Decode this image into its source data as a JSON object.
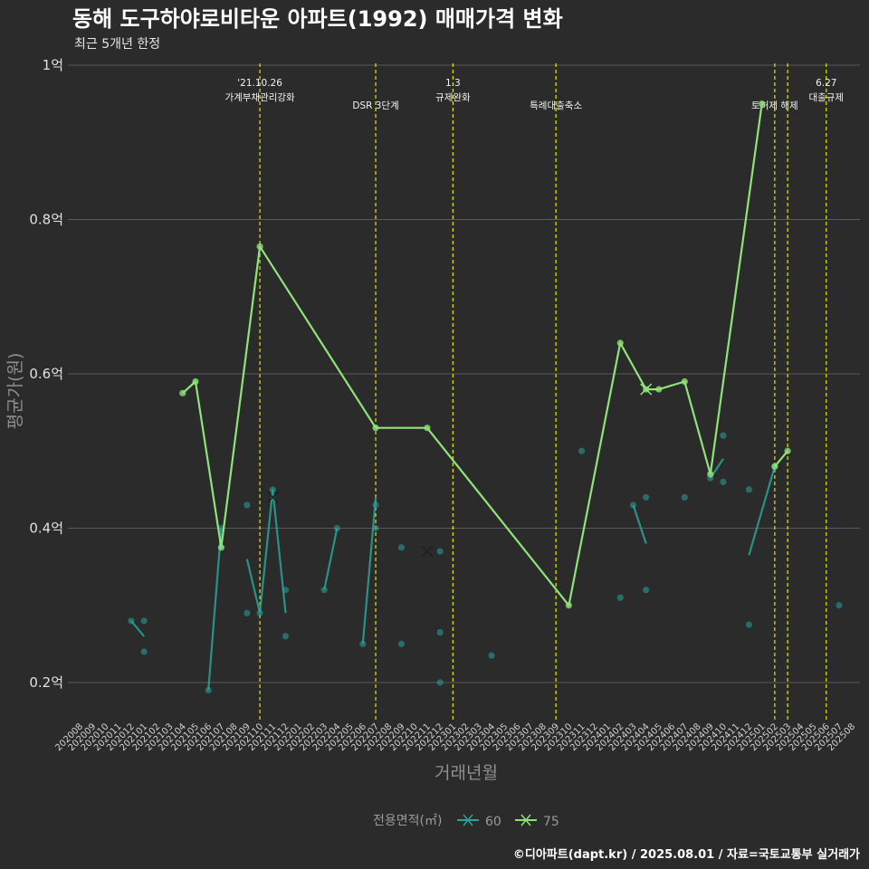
{
  "title": "동해 도구하야로비타운 아파트(1992) 매매가격 변화",
  "subtitle": "최근 5개년 한정",
  "caption": "©디아파트(dapt.kr) / 2025.08.01 / 자료=국토교통부 실거래가",
  "legend": {
    "title": "전용면적(㎡)"
  },
  "colors": {
    "background": "#2b2b2b",
    "grid": "#5a5a5a",
    "event_line": "#e6e600"
  },
  "chart_data": {
    "type": "line",
    "xlabel": "거래년월",
    "ylabel": "평균가(원)",
    "ylim": [
      0.155,
      1.0
    ],
    "yticks": [
      {
        "value": 0.2,
        "label": "0.2억"
      },
      {
        "value": 0.4,
        "label": "0.4억"
      },
      {
        "value": 0.6,
        "label": "0.6억"
      },
      {
        "value": 0.8,
        "label": "0.8억"
      },
      {
        "value": 1.0,
        "label": "1억"
      }
    ],
    "x_categories": [
      "202008",
      "202009",
      "202010",
      "202011",
      "202012",
      "202101",
      "202102",
      "202103",
      "202104",
      "202105",
      "202106",
      "202107",
      "202108",
      "202109",
      "202110",
      "202111",
      "202112",
      "202201",
      "202202",
      "202203",
      "202204",
      "202205",
      "202206",
      "202207",
      "202208",
      "202209",
      "202210",
      "202211",
      "202212",
      "202301",
      "202302",
      "202303",
      "202304",
      "202305",
      "202306",
      "202307",
      "202308",
      "202309",
      "202310",
      "202311",
      "202312",
      "202401",
      "202402",
      "202403",
      "202404",
      "202405",
      "202406",
      "202407",
      "202408",
      "202409",
      "202410",
      "202411",
      "202412",
      "202501",
      "202502",
      "202503",
      "202504",
      "202505",
      "202506",
      "202507",
      "202508"
    ],
    "grid": true,
    "legend_position": "bottom",
    "events": [
      {
        "x": "202110",
        "label": [
          "'21.10.26",
          "가계부채관리강화"
        ]
      },
      {
        "x": "202207",
        "label": [
          "DSR 3단계"
        ]
      },
      {
        "x": "202301",
        "label": [
          "1.3",
          "규제완화"
        ]
      },
      {
        "x": "202309",
        "label": [
          "특례대출축소"
        ]
      },
      {
        "x": "202502",
        "label": [
          "토허제 해제"
        ]
      },
      {
        "x": "202503",
        "label": [
          ""
        ]
      },
      {
        "x": "202506",
        "label": [
          "6.27",
          "대출규제"
        ]
      }
    ],
    "series": [
      {
        "name": "60",
        "color": "#2aa39a",
        "line_segments": [
          [
            [
              "202012",
              0.28
            ],
            [
              "202101",
              0.26
            ]
          ],
          [
            [
              "202106",
              0.19
            ],
            [
              "202107",
              0.4
            ]
          ],
          [
            [
              "202109",
              0.36
            ],
            [
              "202110",
              0.29
            ],
            [
              "202111",
              0.45
            ],
            [
              "202112",
              0.29
            ]
          ],
          [
            [
              "202203",
              0.32
            ],
            [
              "202204",
              0.4
            ]
          ],
          [
            [
              "202206",
              0.25
            ],
            [
              "202207",
              0.44
            ]
          ],
          [
            [
              "202403",
              0.43
            ],
            [
              "202404",
              0.38
            ]
          ],
          [
            [
              "202409",
              0.465
            ],
            [
              "202410",
              0.49
            ]
          ],
          [
            [
              "202412",
              0.365
            ],
            [
              "202502",
              0.48
            ]
          ]
        ],
        "points": [
          [
            "202012",
            0.28
          ],
          [
            "202101",
            0.28
          ],
          [
            "202101",
            0.24
          ],
          [
            "202106",
            0.19
          ],
          [
            "202107",
            0.4
          ],
          [
            "202109",
            0.43
          ],
          [
            "202109",
            0.29
          ],
          [
            "202110",
            0.29
          ],
          [
            "202111",
            0.45
          ],
          [
            "202112",
            0.32
          ],
          [
            "202112",
            0.26
          ],
          [
            "202203",
            0.32
          ],
          [
            "202204",
            0.4
          ],
          [
            "202206",
            0.25
          ],
          [
            "202207",
            0.43
          ],
          [
            "202207",
            0.4
          ],
          [
            "202209",
            0.25
          ],
          [
            "202209",
            0.375
          ],
          [
            "202212",
            0.37
          ],
          [
            "202212",
            0.265
          ],
          [
            "202212",
            0.2
          ],
          [
            "202304",
            0.235
          ],
          [
            "202311",
            0.5
          ],
          [
            "202402",
            0.31
          ],
          [
            "202403",
            0.43
          ],
          [
            "202404",
            0.44
          ],
          [
            "202404",
            0.32
          ],
          [
            "202407",
            0.44
          ],
          [
            "202409",
            0.465
          ],
          [
            "202410",
            0.52
          ],
          [
            "202410",
            0.46
          ],
          [
            "202412",
            0.45
          ],
          [
            "202412",
            0.275
          ],
          [
            "202502",
            0.48
          ],
          [
            "202507",
            0.3
          ]
        ],
        "markers_x": [
          [
            "202111",
            0.44
          ],
          [
            "202211",
            0.37
          ]
        ]
      },
      {
        "name": "75",
        "color": "#8fe37a",
        "line_segments": [
          [
            [
              "202104",
              0.575
            ],
            [
              "202105",
              0.59
            ],
            [
              "202107",
              0.375
            ],
            [
              "202110",
              0.765
            ],
            [
              "202207",
              0.53
            ],
            [
              "202211",
              0.53
            ],
            [
              "202310",
              0.3
            ],
            [
              "202402",
              0.64
            ],
            [
              "202404",
              0.58
            ],
            [
              "202405",
              0.58
            ],
            [
              "202407",
              0.59
            ],
            [
              "202409",
              0.47
            ],
            [
              "202501",
              0.95
            ]
          ],
          [
            [
              "202502",
              0.48
            ],
            [
              "202503",
              0.5
            ]
          ]
        ],
        "points": [
          [
            "202104",
            0.575
          ],
          [
            "202105",
            0.59
          ],
          [
            "202107",
            0.375
          ],
          [
            "202110",
            0.765
          ],
          [
            "202207",
            0.53
          ],
          [
            "202211",
            0.53
          ],
          [
            "202310",
            0.3
          ],
          [
            "202402",
            0.64
          ],
          [
            "202404",
            0.58
          ],
          [
            "202405",
            0.58
          ],
          [
            "202407",
            0.59
          ],
          [
            "202409",
            0.47
          ],
          [
            "202501",
            0.95
          ],
          [
            "202502",
            0.48
          ],
          [
            "202503",
            0.5
          ]
        ],
        "markers_x": [
          [
            "202404",
            0.58
          ]
        ]
      }
    ]
  }
}
